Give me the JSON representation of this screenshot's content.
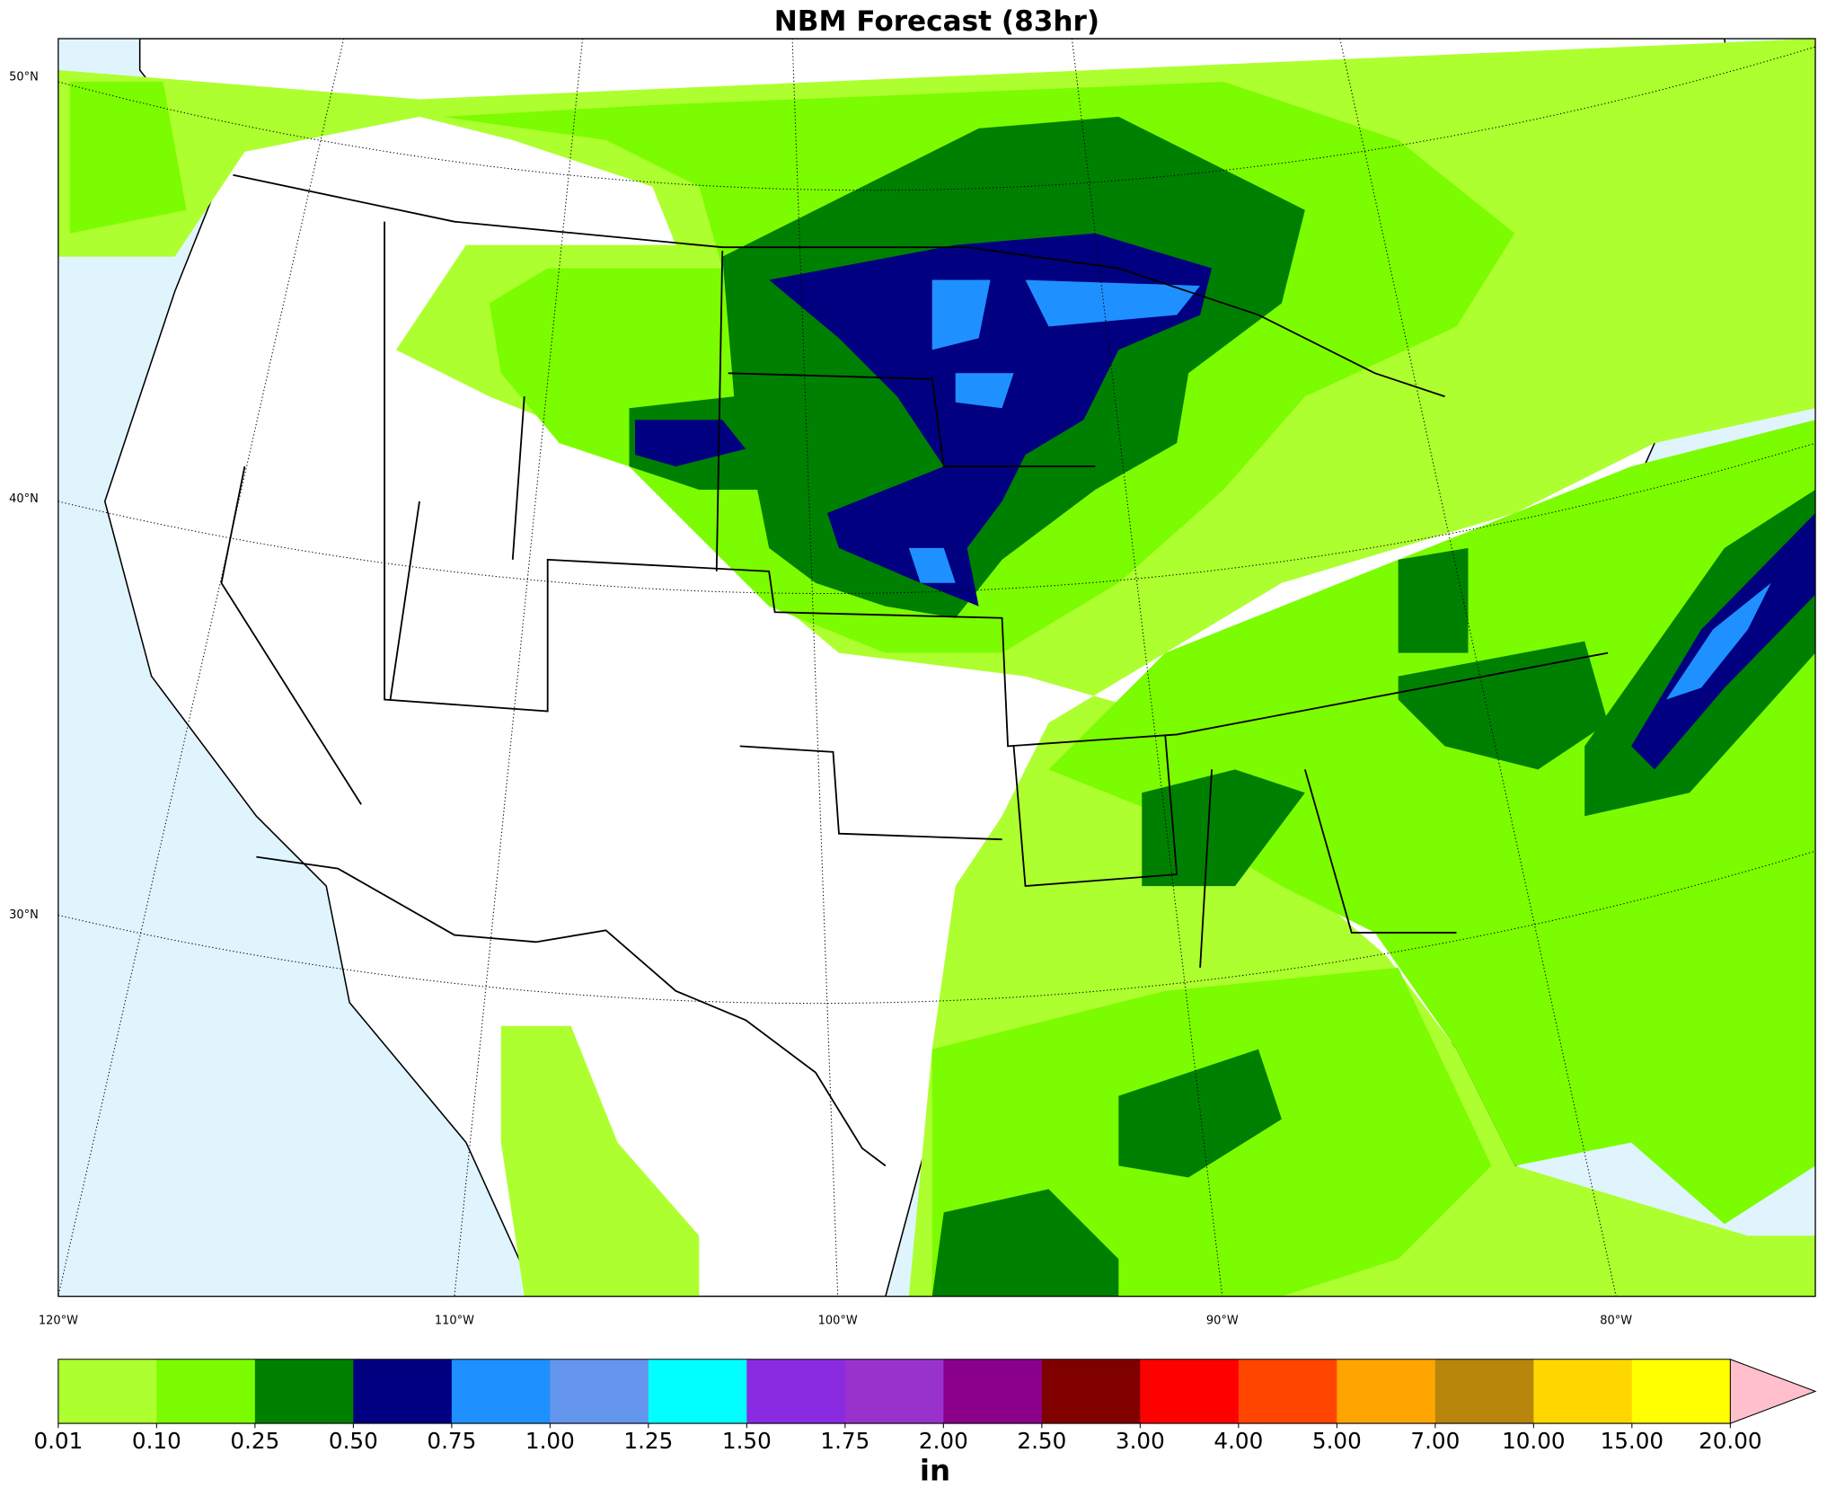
{
  "header": {
    "title": "NBM Forecast (83hr)"
  },
  "map": {
    "lat_labels": [
      "50°N",
      "40°N",
      "30°N"
    ],
    "lon_labels": [
      "120°W",
      "110°W",
      "100°W",
      "90°W",
      "80°W"
    ]
  },
  "colorbar": {
    "unit": "in",
    "levels": [
      "0.01",
      "0.10",
      "0.25",
      "0.50",
      "0.75",
      "1.00",
      "1.25",
      "1.50",
      "1.75",
      "2.00",
      "2.50",
      "3.00",
      "4.00",
      "5.00",
      "7.00",
      "10.00",
      "15.00",
      "20.00"
    ],
    "colors": [
      "#adff2f",
      "#7cfc00",
      "#008000",
      "#000080",
      "#1e90ff",
      "#6495ed",
      "#00ffff",
      "#8a2be2",
      "#9932cc",
      "#8b008b",
      "#800000",
      "#ff0000",
      "#ff4500",
      "#ffa500",
      "#b8860b",
      "#ffd700",
      "#ffff00"
    ],
    "extend_color": "#ffc0cb"
  }
}
